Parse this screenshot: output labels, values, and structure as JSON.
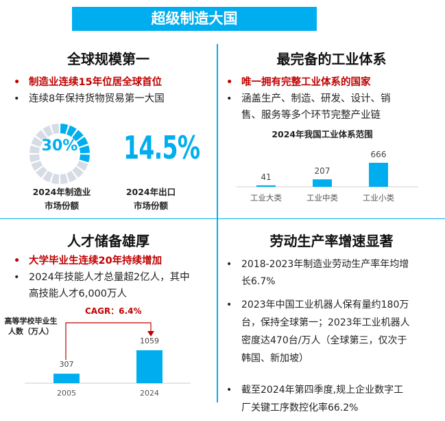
{
  "title": "超级制造大国",
  "q1": {
    "heading": "全球规模第一",
    "bullets": [
      "制造业连续15年位居全球首位",
      "连续8年保持货物贸易第一大国"
    ],
    "ring": {
      "value_label": "30%",
      "value": 30,
      "caption": [
        "2024年制造业",
        "市场份额"
      ]
    },
    "stat": {
      "value_label": "14.5%",
      "caption": [
        "2024年出口",
        "市场份额"
      ]
    }
  },
  "q2": {
    "heading": "最完备的工业体系",
    "bullets": [
      "唯一拥有完整工业体系的国家",
      "涵盖生产、制造、研发、设计、销",
      "售、服务等多个环节完整产业链"
    ]
  },
  "q3": {
    "heading": "人才储备雄厚",
    "bullets": [
      "大学毕业生连续20年持续增加",
      "2024年技能人才总量超2亿人，其中",
      "高技能人才6,000万人"
    ],
    "cagr": "CAGR：6.4%"
  },
  "q4": {
    "heading": "劳动生产率增速显著",
    "bullets": [
      [
        "2018-2023年制造业劳动生产率年均增",
        "长6.7%"
      ],
      [
        "2023年中国工业机器人保有量约180万",
        "台，保持全球第一；2023年工业机器人",
        "密度达470台/万人（全球第三，仅次于",
        "韩国、新加坡）"
      ],
      [
        "截至2024年第四季度,规上企业数字工",
        "厂关键工序数控化率66.2%"
      ]
    ]
  },
  "chart_data": [
    {
      "type": "bar",
      "title": "2024年我国工业体系范围",
      "categories": [
        "工业大类",
        "工业中类",
        "工业小类"
      ],
      "values": [
        41,
        207,
        666
      ],
      "color": "#00AEEF"
    },
    {
      "type": "bar",
      "title": "高等学校毕业生人数（万人）",
      "categories": [
        "2005",
        "2024"
      ],
      "values": [
        307,
        1059
      ],
      "annotation": "CAGR：6.4%",
      "color": "#00AEEF"
    }
  ],
  "colors": {
    "accent": "#00AEEF",
    "highlight": "#C00000",
    "ring_bg": "#D6DCE5"
  }
}
